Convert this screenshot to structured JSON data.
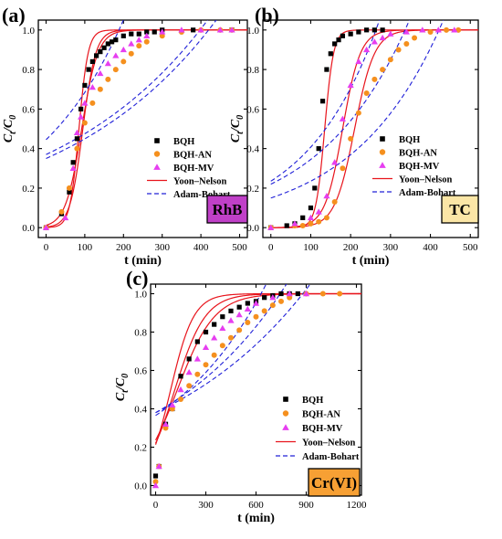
{
  "figure": {
    "panels_note": "three breakthrough-curve panels"
  },
  "chart_data": [
    {
      "type": "scatter",
      "panel_label": "(a)",
      "tag": "RhB",
      "tag_color": "#c040c8",
      "xlabel": "t (min)",
      "ylabel_main": "C",
      "ylabel_sub": "t",
      "ylabel_den": "/C",
      "ylabel_den_sub": "0",
      "xlim": [
        -20,
        520
      ],
      "ylim": [
        -0.05,
        1.05
      ],
      "xticks": [
        0,
        100,
        200,
        300,
        400,
        500
      ],
      "xtick_labels": [
        "0",
        "100",
        "200",
        "300",
        "400",
        "500"
      ],
      "yticks": [
        0.0,
        0.2,
        0.4,
        0.6,
        0.8,
        1.0
      ],
      "ytick_labels": [
        "0.0",
        "0.2",
        "0.4",
        "0.6",
        "0.8",
        "1.0"
      ],
      "legend": [
        "BQH",
        "BQH-AN",
        "BQH-MV",
        "Yoon–Nelson",
        "Adam-Bohart"
      ],
      "legend_position": "right",
      "series": [
        {
          "name": "BQH",
          "marker": "square",
          "color": "#000000",
          "x": [
            0,
            40,
            60,
            70,
            80,
            90,
            100,
            110,
            120,
            130,
            140,
            150,
            160,
            170,
            180,
            200,
            220,
            240,
            260,
            280,
            300,
            380,
            480
          ],
          "y": [
            0.0,
            0.07,
            0.18,
            0.33,
            0.45,
            0.6,
            0.72,
            0.8,
            0.84,
            0.87,
            0.89,
            0.91,
            0.93,
            0.94,
            0.95,
            0.97,
            0.98,
            0.98,
            0.99,
            0.99,
            1.0,
            1.0,
            1.0
          ]
        },
        {
          "name": "BQH-AN",
          "marker": "circle",
          "color": "#f5901e",
          "x": [
            0,
            40,
            60,
            80,
            100,
            120,
            140,
            160,
            180,
            200,
            220,
            240,
            260,
            300,
            350,
            400,
            450,
            480
          ],
          "y": [
            0.0,
            0.08,
            0.2,
            0.4,
            0.53,
            0.63,
            0.7,
            0.75,
            0.8,
            0.84,
            0.88,
            0.92,
            0.94,
            0.97,
            0.99,
            1.0,
            1.0,
            1.0
          ]
        },
        {
          "name": "BQH-MV",
          "marker": "triangle",
          "color": "#e63ef0",
          "x": [
            0,
            50,
            70,
            80,
            90,
            100,
            120,
            140,
            160,
            180,
            200,
            220,
            240,
            260,
            300,
            350,
            400,
            450,
            480
          ],
          "y": [
            0.0,
            0.05,
            0.3,
            0.48,
            0.56,
            0.63,
            0.71,
            0.78,
            0.83,
            0.87,
            0.9,
            0.93,
            0.95,
            0.97,
            0.99,
            1.0,
            1.0,
            1.0,
            1.0
          ]
        }
      ],
      "yoon_nelson": [
        {
          "k": 0.085,
          "tau": 85
        },
        {
          "k": 0.06,
          "tau": 95
        },
        {
          "k": 0.048,
          "tau": 92
        }
      ],
      "adam_bohart": [
        {
          "a": 0.445,
          "b": 0.0043
        },
        {
          "a": 0.37,
          "b": 0.0025
        },
        {
          "a": 0.35,
          "b": 0.0025
        }
      ]
    },
    {
      "type": "scatter",
      "panel_label": "(b)",
      "tag": "TC",
      "tag_color": "#fbe6a6",
      "xlabel": "t (min)",
      "ylabel_main": "C",
      "ylabel_sub": "t",
      "ylabel_den": "/C",
      "ylabel_den_sub": "0",
      "xlim": [
        -20,
        520
      ],
      "ylim": [
        -0.05,
        1.05
      ],
      "xticks": [
        0,
        100,
        200,
        300,
        400,
        500
      ],
      "xtick_labels": [
        "0",
        "100",
        "200",
        "300",
        "400",
        "500"
      ],
      "yticks": [
        0.0,
        0.2,
        0.4,
        0.6,
        0.8,
        1.0
      ],
      "ytick_labels": [
        "0.0",
        "0.2",
        "0.4",
        "0.6",
        "0.8",
        "1.0"
      ],
      "legend": [
        "BQH",
        "BQH-AN",
        "BQH-MV",
        "Yoon–Nelson",
        "Adam-Bohart"
      ],
      "legend_position": "right",
      "series": [
        {
          "name": "BQH",
          "marker": "square",
          "color": "#000000",
          "x": [
            0,
            40,
            60,
            80,
            100,
            110,
            120,
            130,
            140,
            150,
            160,
            170,
            180,
            200,
            220,
            240,
            260,
            280
          ],
          "y": [
            0.0,
            0.01,
            0.02,
            0.05,
            0.1,
            0.2,
            0.4,
            0.64,
            0.8,
            0.88,
            0.93,
            0.95,
            0.97,
            0.98,
            0.99,
            1.0,
            1.0,
            1.0
          ]
        },
        {
          "name": "BQH-AN",
          "marker": "circle",
          "color": "#f5901e",
          "x": [
            0,
            60,
            80,
            100,
            120,
            140,
            160,
            180,
            200,
            220,
            240,
            260,
            280,
            300,
            320,
            340,
            360,
            400,
            440,
            470
          ],
          "y": [
            0.0,
            0.01,
            0.01,
            0.02,
            0.03,
            0.05,
            0.13,
            0.3,
            0.45,
            0.58,
            0.68,
            0.75,
            0.8,
            0.85,
            0.9,
            0.93,
            0.96,
            0.99,
            1.0,
            1.0
          ]
        },
        {
          "name": "BQH-MV",
          "marker": "triangle",
          "color": "#e63ef0",
          "x": [
            0,
            60,
            100,
            120,
            140,
            160,
            180,
            200,
            220,
            240,
            260,
            280,
            300,
            340,
            380,
            420,
            460
          ],
          "y": [
            0.0,
            0.02,
            0.05,
            0.08,
            0.16,
            0.33,
            0.55,
            0.72,
            0.84,
            0.9,
            0.94,
            0.96,
            0.98,
            0.99,
            1.0,
            1.0,
            1.0
          ]
        }
      ],
      "yoon_nelson": [
        {
          "k": 0.09,
          "tau": 135
        },
        {
          "k": 0.04,
          "tau": 210
        },
        {
          "k": 0.045,
          "tau": 180
        }
      ],
      "adam_bohart": [
        {
          "a": 0.235,
          "b": 0.0055
        },
        {
          "a": 0.15,
          "b": 0.0045
        },
        {
          "a": 0.22,
          "b": 0.0045
        }
      ]
    },
    {
      "type": "scatter",
      "panel_label": "(c)",
      "tag": "Cr(VI)",
      "tag_color": "#f7a034",
      "xlabel": "t (min)",
      "ylabel_main": "C",
      "ylabel_sub": "t",
      "ylabel_den": "/C",
      "ylabel_den_sub": "0",
      "xlim": [
        -30,
        1230
      ],
      "ylim": [
        -0.05,
        1.05
      ],
      "xticks": [
        0,
        300,
        600,
        900,
        1200
      ],
      "xtick_labels": [
        "0",
        "300",
        "600",
        "900",
        "1200"
      ],
      "yticks": [
        0.0,
        0.2,
        0.4,
        0.6,
        0.8,
        1.0
      ],
      "ytick_labels": [
        "0.0",
        "0.2",
        "0.4",
        "0.6",
        "0.8",
        "1.0"
      ],
      "legend": [
        "BQH",
        "BQH-AN",
        "BQH-MV",
        "Yoon–Nelson",
        "Adam-Bohart"
      ],
      "legend_position": "right",
      "series": [
        {
          "name": "BQH",
          "marker": "square",
          "color": "#000000",
          "x": [
            0,
            20,
            60,
            100,
            150,
            200,
            250,
            300,
            350,
            400,
            450,
            500,
            550,
            600,
            650,
            700,
            750,
            800,
            850
          ],
          "y": [
            0.05,
            0.1,
            0.32,
            0.4,
            0.57,
            0.66,
            0.75,
            0.8,
            0.84,
            0.88,
            0.91,
            0.93,
            0.95,
            0.96,
            0.98,
            0.99,
            1.0,
            1.0,
            1.0
          ]
        },
        {
          "name": "BQH-AN",
          "marker": "circle",
          "color": "#f5901e",
          "x": [
            0,
            20,
            60,
            100,
            150,
            200,
            250,
            300,
            350,
            400,
            450,
            500,
            550,
            600,
            650,
            700,
            750,
            800,
            900,
            1000,
            1100
          ],
          "y": [
            0.02,
            0.1,
            0.3,
            0.4,
            0.45,
            0.52,
            0.58,
            0.63,
            0.68,
            0.73,
            0.77,
            0.81,
            0.85,
            0.88,
            0.91,
            0.94,
            0.96,
            0.98,
            1.0,
            1.0,
            1.0
          ]
        },
        {
          "name": "BQH-MV",
          "marker": "triangle",
          "color": "#e63ef0",
          "x": [
            0,
            20,
            60,
            100,
            150,
            200,
            250,
            300,
            350,
            400,
            450,
            500,
            550,
            600,
            700,
            800,
            900
          ],
          "y": [
            0.0,
            0.1,
            0.32,
            0.42,
            0.5,
            0.59,
            0.66,
            0.72,
            0.77,
            0.82,
            0.86,
            0.89,
            0.92,
            0.95,
            0.98,
            1.0,
            1.0
          ]
        }
      ],
      "yoon_nelson": [
        {
          "k": 0.0145,
          "tau": 90
        },
        {
          "k": 0.009,
          "tau": 130
        },
        {
          "k": 0.011,
          "tau": 115
        }
      ],
      "adam_bohart": [
        {
          "a": 0.365,
          "b": 0.0016
        },
        {
          "a": 0.38,
          "b": 0.0011
        },
        {
          "a": 0.38,
          "b": 0.0013
        }
      ]
    }
  ]
}
